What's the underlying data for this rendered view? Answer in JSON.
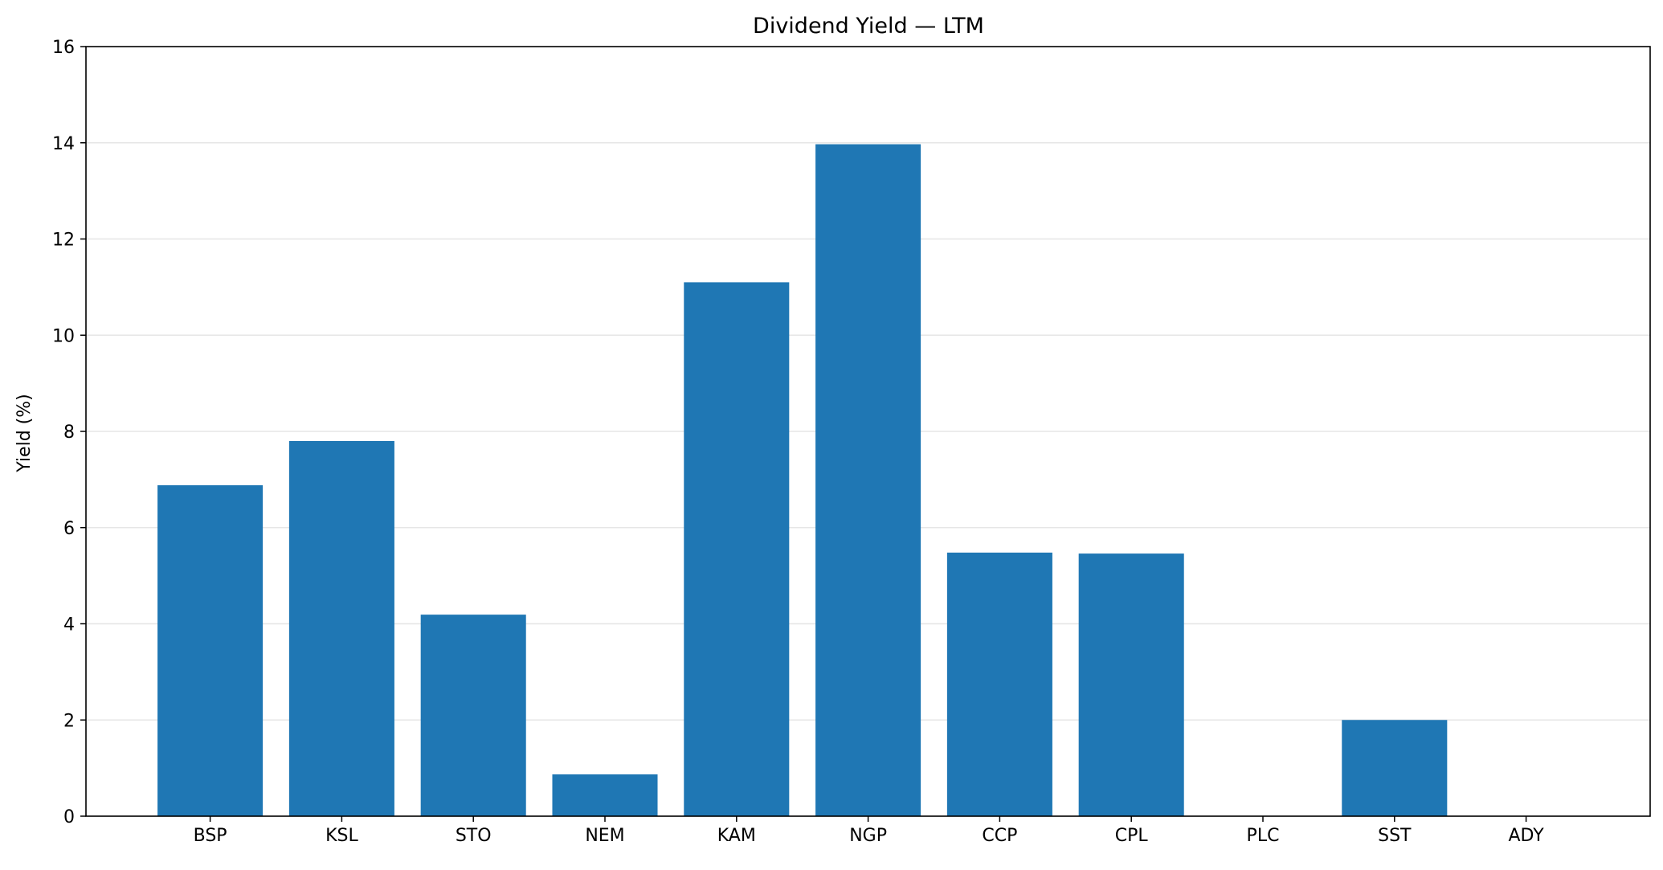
{
  "chart_data": {
    "type": "bar",
    "title": "Dividend Yield — LTM",
    "xlabel": "",
    "ylabel": "Yield (%)",
    "ylim": [
      0,
      16
    ],
    "yticks": [
      0,
      2,
      4,
      6,
      8,
      10,
      12,
      14,
      16
    ],
    "categories": [
      "BSP",
      "KSL",
      "STO",
      "NEM",
      "KAM",
      "NGP",
      "CCP",
      "CPL",
      "PLC",
      "SST",
      "ADY"
    ],
    "values": [
      6.88,
      7.8,
      4.19,
      0.87,
      11.1,
      13.97,
      5.48,
      5.46,
      0,
      2.0,
      0
    ],
    "grid": {
      "y": true,
      "x": false
    },
    "legend": "none",
    "colors": {
      "bar": "#1f77b4",
      "grid": "#e6e6e6",
      "axis": "#000000"
    }
  }
}
